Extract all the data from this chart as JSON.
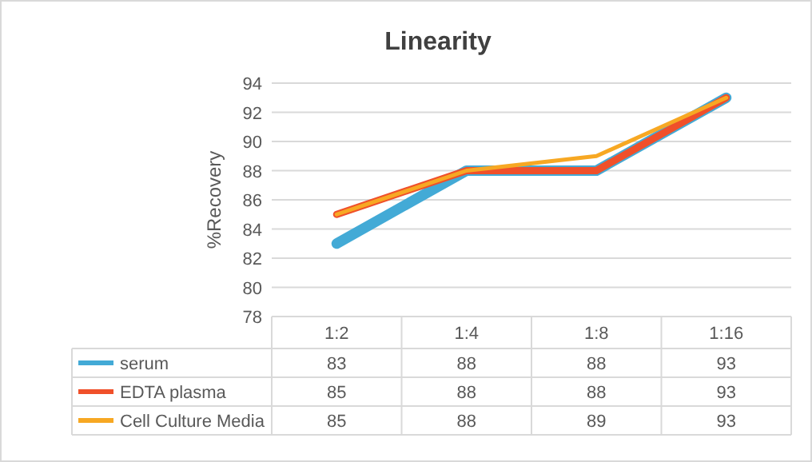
{
  "chart_data": {
    "type": "line",
    "title": "Linearity",
    "ylabel": "%Recovery",
    "categories": [
      "1:2",
      "1:4",
      "1:8",
      "1:16"
    ],
    "series": [
      {
        "name": "serum",
        "color": "#43aad6",
        "values": [
          83,
          88,
          88,
          93
        ]
      },
      {
        "name": "EDTA plasma",
        "color": "#f0502a",
        "values": [
          85,
          88,
          88,
          93
        ]
      },
      {
        "name": "Cell Culture Media",
        "color": "#f7a823",
        "values": [
          85,
          88,
          89,
          93
        ]
      }
    ],
    "ylim": [
      78,
      94
    ],
    "yticks": [
      78,
      80,
      82,
      84,
      86,
      88,
      90,
      92,
      94
    ],
    "grid": "y",
    "legend": "bottom",
    "data_labels": true,
    "marker": "none",
    "line_style": "solid"
  }
}
